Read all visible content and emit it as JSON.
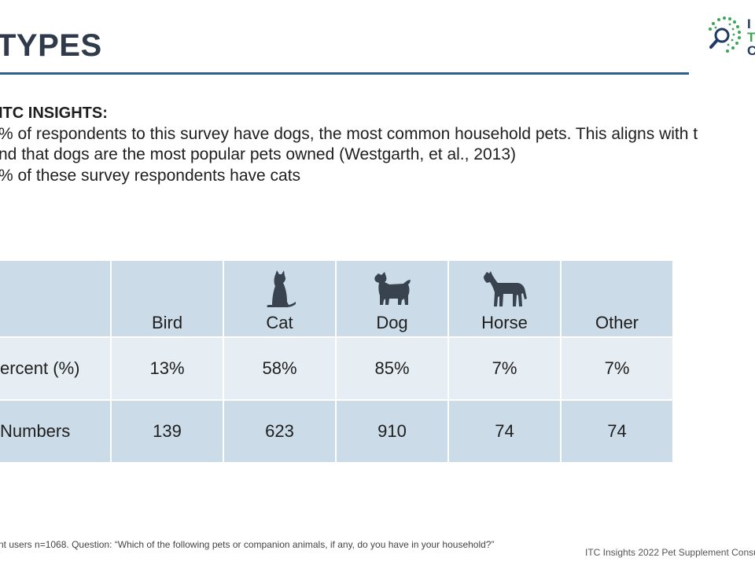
{
  "slide": {
    "title": "TYPES",
    "logo_letters": [
      "I",
      "T",
      "C"
    ]
  },
  "insights": {
    "heading": "ITC INSIGHTS:",
    "lines": [
      "% of respondents to this survey have dogs, the most common household pets. This aligns with t",
      "nd that dogs are the most popular pets owned (Westgarth, et al., 2013)",
      "% of these survey respondents have cats"
    ]
  },
  "table": {
    "columns": [
      {
        "label": "Bird",
        "icon": null
      },
      {
        "label": "Cat",
        "icon": "cat-icon"
      },
      {
        "label": "Dog",
        "icon": "dog-icon"
      },
      {
        "label": "Horse",
        "icon": "horse-icon"
      },
      {
        "label": "Other",
        "icon": null
      }
    ],
    "rows": [
      {
        "label": "ercent (%)",
        "values": [
          "13%",
          "58%",
          "85%",
          "7%",
          "7%"
        ]
      },
      {
        "label": "Numbers",
        "values": [
          "139",
          "623",
          "910",
          "74",
          "74"
        ]
      }
    ]
  },
  "footnote": "nt users n=1068. Question: “Which of the following pets or companion animals, if any, do you have in your household?”",
  "footer_right": "ITC Insights 2022 Pet Supplement Consu",
  "colors": {
    "title": "#2f3a4a",
    "rule": "#2e5f8a",
    "table_dark": "#cbdbe7",
    "table_light": "#e6eef3",
    "icon": "#38434f",
    "logo_green": "#3aa655",
    "logo_navy": "#1f3b63"
  }
}
